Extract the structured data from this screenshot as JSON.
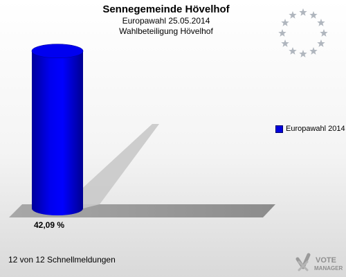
{
  "header": {
    "title": "Sennegemeinde Hövelhof",
    "subtitle1": "Europawahl 25.05.2014",
    "subtitle2": "Wahlbeteiligung Hövelhof"
  },
  "chart_data": {
    "type": "bar",
    "categories": [
      "Europawahl 2014"
    ],
    "series": [
      {
        "name": "Europawahl 2014",
        "values": [
          42.09
        ],
        "color": "#0000dd"
      }
    ],
    "value_labels": [
      "42,09 %"
    ],
    "ylim": [
      0,
      45
    ],
    "grid": false,
    "legend": "right"
  },
  "footer": {
    "status": "12 von 12 Schnellmeldungen"
  },
  "branding": {
    "logo_text_line1": "VOTE",
    "logo_text_line2": "MANAGER",
    "eu_stars": 12,
    "star_color": "#b0b6be"
  }
}
